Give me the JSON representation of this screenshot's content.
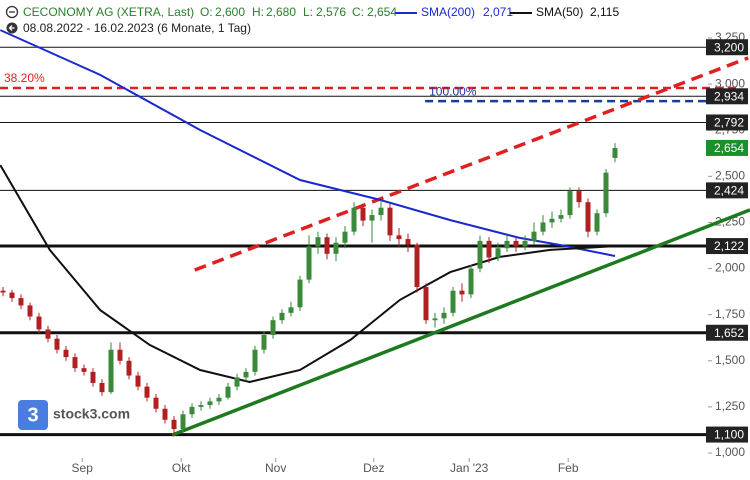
{
  "chart_data": {
    "type": "candlestick",
    "title": "CECONOMY AG (XETRA, Last)",
    "subtitle": "08.08.2022 - 16.02.2023 (6 Monate, 1 Tag)",
    "ohlc": {
      "labels": [
        "O:",
        "H:",
        "L:",
        "C:"
      ],
      "values": [
        2.6,
        2.68,
        2.576,
        2.654
      ],
      "value_labels": [
        "2,600",
        "2,680",
        "2,576",
        "2,654"
      ]
    },
    "logo": "stock3.com",
    "logo_mark": "3",
    "xlim": [
      -0.333,
      83
    ],
    "xticks": [
      {
        "value": 8.8,
        "label": "Sep"
      },
      {
        "value": 19.8,
        "label": "Okt"
      },
      {
        "value": 30.3,
        "label": "Nov"
      },
      {
        "value": 41.2,
        "label": "Dez"
      },
      {
        "value": 51.8,
        "label": "Jan '23"
      },
      {
        "value": 62.8,
        "label": "Feb"
      }
    ],
    "ylim": [
      0.973,
      3.456
    ],
    "yticks": [
      {
        "value": 1.0,
        "label": "1,000"
      },
      {
        "value": 1.25,
        "label": "1,250"
      },
      {
        "value": 1.5,
        "label": "1,500"
      },
      {
        "value": 1.75,
        "label": "1,750"
      },
      {
        "value": 2.0,
        "label": "2,000"
      },
      {
        "value": 2.25,
        "label": "2,250"
      },
      {
        "value": 2.5,
        "label": "2,500"
      },
      {
        "value": 2.75,
        "label": "2,750"
      },
      {
        "value": 3.0,
        "label": "3,000"
      },
      {
        "value": 3.25,
        "label": "3,250"
      }
    ],
    "grid": false,
    "up_color": "#3a8a3a",
    "down_color": "#b02020",
    "open": [
      1.88,
      1.87,
      1.84,
      1.8,
      1.74,
      1.67,
      1.62,
      1.56,
      1.52,
      1.46,
      1.44,
      1.38,
      1.33,
      1.56,
      1.5,
      1.42,
      1.36,
      1.3,
      1.24,
      1.18,
      1.13,
      1.21,
      1.25,
      1.26,
      1.28,
      1.3,
      1.36,
      1.41,
      1.44,
      1.56,
      1.64,
      1.72,
      1.76,
      1.79,
      1.94,
      2.12,
      2.17,
      2.08,
      2.14,
      2.2,
      2.33,
      2.26,
      2.29,
      2.33,
      2.18,
      2.16,
      2.13,
      1.9,
      1.72,
      1.73,
      1.76,
      1.88,
      1.86,
      2.0,
      2.15,
      2.06,
      2.11,
      2.15,
      2.12,
      2.15,
      2.2,
      2.25,
      2.27,
      2.29,
      2.42,
      2.36,
      2.2,
      2.3,
      2.6
    ],
    "high": [
      1.9,
      1.885,
      1.86,
      1.815,
      1.76,
      1.69,
      1.64,
      1.58,
      1.54,
      1.48,
      1.46,
      1.4,
      1.6,
      1.6,
      1.52,
      1.44,
      1.38,
      1.32,
      1.26,
      1.2,
      1.23,
      1.27,
      1.28,
      1.3,
      1.32,
      1.38,
      1.43,
      1.46,
      1.58,
      1.66,
      1.74,
      1.78,
      1.82,
      1.96,
      2.18,
      2.2,
      2.19,
      2.17,
      2.23,
      2.36,
      2.35,
      2.32,
      2.37,
      2.35,
      2.22,
      2.19,
      2.14,
      1.92,
      1.76,
      1.79,
      1.9,
      1.92,
      2.02,
      2.18,
      2.17,
      2.14,
      2.18,
      2.17,
      2.18,
      2.25,
      2.29,
      2.31,
      2.32,
      2.44,
      2.44,
      2.38,
      2.32,
      2.54,
      2.68
    ],
    "low": [
      1.85,
      1.82,
      1.78,
      1.72,
      1.65,
      1.6,
      1.54,
      1.5,
      1.44,
      1.42,
      1.36,
      1.31,
      1.32,
      1.48,
      1.4,
      1.34,
      1.28,
      1.22,
      1.16,
      1.1,
      1.11,
      1.19,
      1.23,
      1.24,
      1.26,
      1.29,
      1.34,
      1.39,
      1.42,
      1.54,
      1.62,
      1.7,
      1.74,
      1.77,
      1.92,
      2.08,
      2.05,
      2.04,
      2.11,
      2.18,
      2.23,
      2.14,
      2.26,
      2.15,
      2.12,
      2.09,
      1.87,
      1.7,
      1.68,
      1.7,
      1.74,
      1.82,
      1.84,
      1.98,
      2.03,
      2.04,
      2.09,
      2.09,
      2.1,
      2.13,
      2.18,
      2.22,
      2.25,
      2.27,
      2.33,
      2.17,
      2.18,
      2.28,
      2.576
    ],
    "close": [
      1.87,
      1.84,
      1.8,
      1.74,
      1.67,
      1.62,
      1.56,
      1.52,
      1.46,
      1.44,
      1.38,
      1.33,
      1.56,
      1.5,
      1.42,
      1.36,
      1.3,
      1.24,
      1.18,
      1.13,
      1.21,
      1.25,
      1.26,
      1.28,
      1.3,
      1.36,
      1.41,
      1.44,
      1.56,
      1.64,
      1.72,
      1.76,
      1.79,
      1.94,
      2.12,
      2.17,
      2.08,
      2.14,
      2.2,
      2.33,
      2.26,
      2.29,
      2.33,
      2.18,
      2.16,
      2.13,
      1.9,
      1.72,
      1.73,
      1.76,
      1.88,
      1.86,
      2.0,
      2.15,
      2.06,
      2.11,
      2.15,
      2.12,
      2.15,
      2.2,
      2.25,
      2.27,
      2.29,
      2.42,
      2.36,
      2.2,
      2.3,
      2.52,
      2.654
    ],
    "series": [
      {
        "name": "SMA(200)",
        "color": "#1a28d0",
        "last": 2.071,
        "last_label": "2,071",
        "x": [
          -0.3,
          10.8,
          21.9,
          33,
          41.9,
          49.7,
          57.4,
          61.9,
          68
        ],
        "values": [
          3.293,
          3.05,
          2.751,
          2.48,
          2.372,
          2.263,
          2.166,
          2.128,
          2.068
        ]
      },
      {
        "name": "SMA(50)",
        "color": "#111111",
        "last": 2.115,
        "last_label": "2,115",
        "x": [
          -0.3,
          5.2,
          10.8,
          16.3,
          21.9,
          27.4,
          33,
          38.6,
          44.1,
          49.7,
          55.2,
          60.8,
          68
        ],
        "values": [
          2.561,
          2.101,
          1.775,
          1.586,
          1.45,
          1.385,
          1.45,
          1.613,
          1.83,
          1.981,
          2.063,
          2.101,
          2.122
        ]
      }
    ],
    "trendlines": [
      {
        "color": "#e02020",
        "dashed": true,
        "x": [
          21.3,
          82.8
        ],
        "values": [
          1.992,
          3.142
        ]
      },
      {
        "color": "#1e7a1e",
        "dashed": false,
        "x": [
          18.8,
          83
        ],
        "values": [
          1.098,
          2.318
        ]
      }
    ],
    "fib_levels": [
      {
        "label": "38.20%",
        "value": 2.979,
        "color": "#e02020",
        "start": -0.333
      },
      {
        "label": "100.00%",
        "value": 2.908,
        "color": "#1a3a9c",
        "start": 46.9
      }
    ],
    "levels": [
      {
        "value": 3.2,
        "label": "3,200",
        "thick": false
      },
      {
        "value": 2.934,
        "label": "2,934",
        "thick": false
      },
      {
        "value": 2.792,
        "label": "2,792",
        "thick": false
      },
      {
        "value": 2.424,
        "label": "2,424",
        "thick": false
      },
      {
        "value": 2.122,
        "label": "2,122",
        "thick": true
      },
      {
        "value": 1.652,
        "label": "1,652",
        "thick": true
      },
      {
        "value": 1.1,
        "label": "1,100",
        "thick": true
      }
    ],
    "price_tag_color": "#1a8f2a"
  }
}
